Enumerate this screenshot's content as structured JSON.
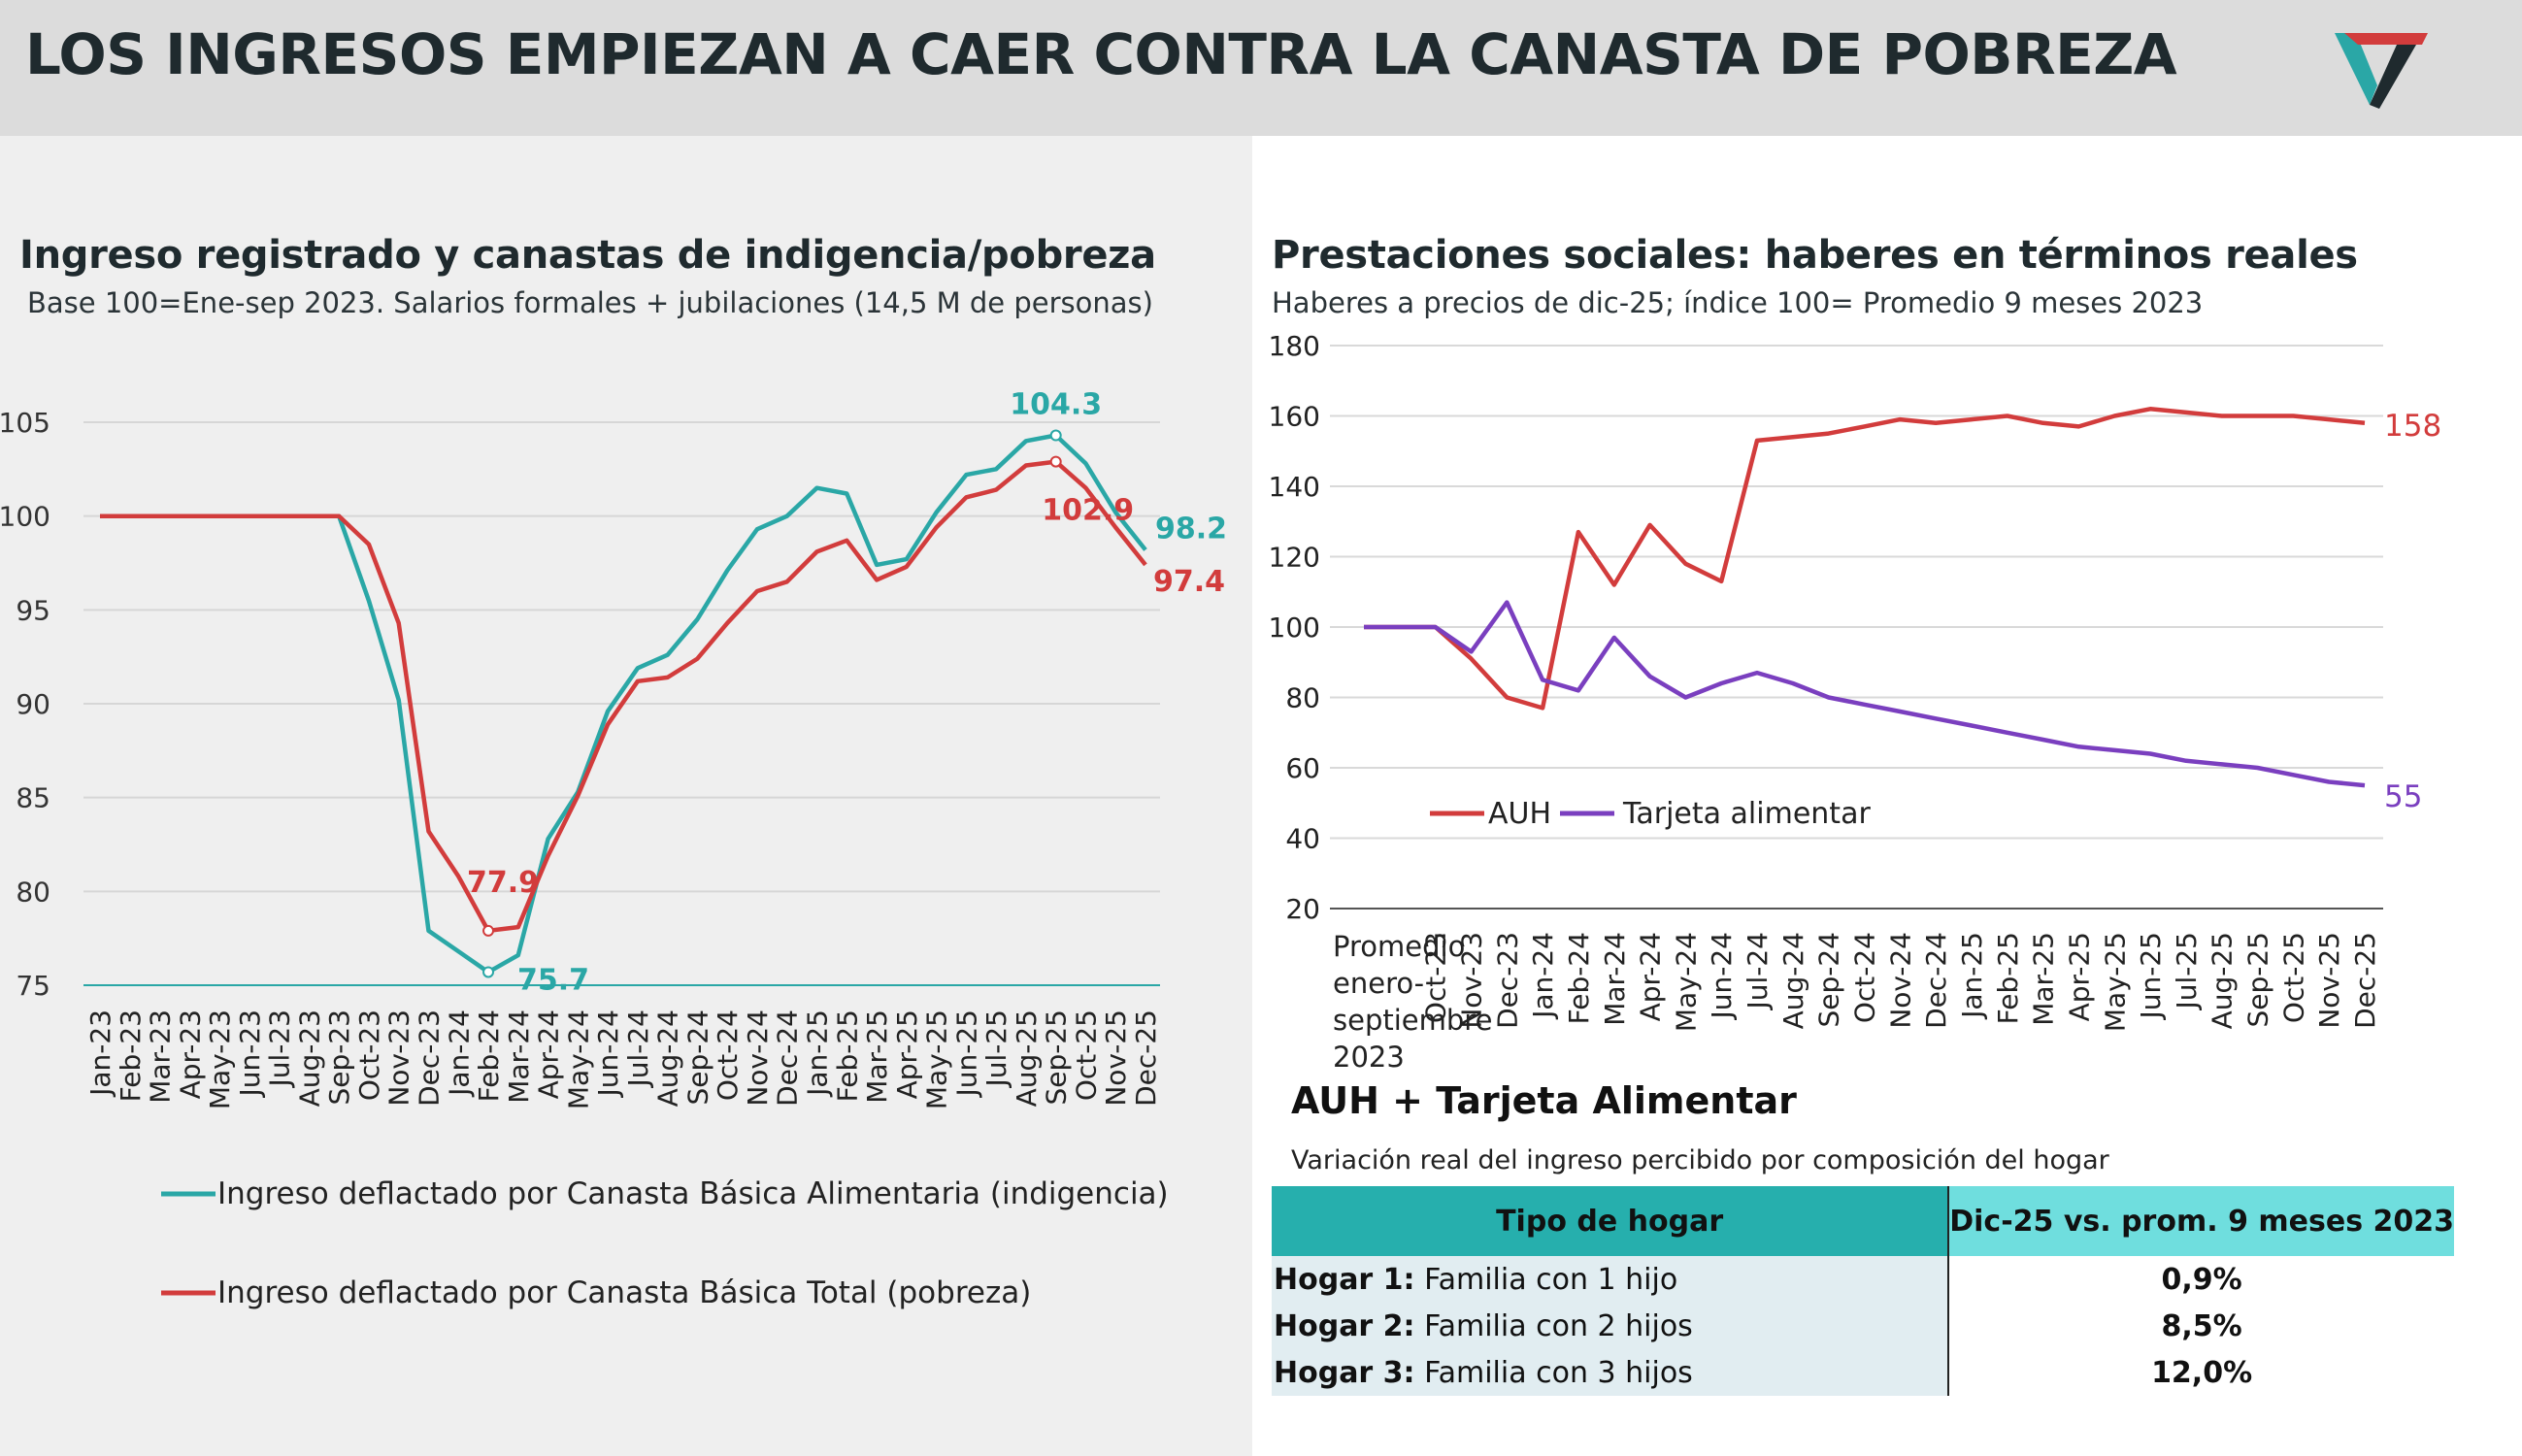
{
  "header": {
    "title": "LOS INGRESOS EMPIEZAN A CAER CONTRA LA CANASTA DE POBREZA",
    "logo": "brand-v-logo",
    "colors": {
      "teal": "#2aa7a6",
      "red": "#d23c3c",
      "dark": "#1f2a2e"
    }
  },
  "left_chart": {
    "title": "Ingreso registrado y canastas de indigencia/pobreza",
    "subtitle": "Base 100=Ene-sep 2023. Salarios formales + jubilaciones (14,5 M de personas)",
    "chart_data": {
      "type": "line",
      "x": [
        "Jan-23",
        "Feb-23",
        "Mar-23",
        "Apr-23",
        "May-23",
        "Jun-23",
        "Jul-23",
        "Aug-23",
        "Sep-23",
        "Oct-23",
        "Nov-23",
        "Dec-23",
        "Jan-24",
        "Feb-24",
        "Mar-24",
        "Apr-24",
        "May-24",
        "Jun-24",
        "Jul-24",
        "Aug-24",
        "Sep-24",
        "Oct-24",
        "Nov-24",
        "Dec-24",
        "Jan-25",
        "Feb-25",
        "Mar-25",
        "Apr-25",
        "May-25",
        "Jun-25",
        "Jul-25",
        "Aug-25",
        "Sep-25",
        "Oct-25",
        "Nov-25",
        "Dec-25"
      ],
      "ylim": [
        75,
        107
      ],
      "yticks": [
        "75",
        "80",
        "85",
        "90",
        "95",
        "100",
        "105"
      ],
      "series": [
        {
          "name": "Ingreso deflactado por Canasta Básica Alimentaria (indigencia)",
          "color": "#2aa7a6",
          "values": [
            100,
            100,
            100,
            100,
            100,
            100,
            100,
            100,
            100,
            95.5,
            90.2,
            77.9,
            76.8,
            75.7,
            76.6,
            82.8,
            85.3,
            89.6,
            91.9,
            92.6,
            94.5,
            97.1,
            99.3,
            100,
            101.5,
            101.2,
            97.4,
            97.7,
            100.2,
            102.2,
            102.5,
            104,
            104.3,
            102.8,
            100.2,
            98.2
          ]
        },
        {
          "name": "Ingreso deflactado por Canasta Básica Total (pobreza)",
          "color": "#d23c3c",
          "values": [
            100,
            100,
            100,
            100,
            100,
            100,
            100,
            100,
            100,
            98.5,
            94.3,
            83.2,
            80.8,
            77.9,
            78.1,
            81.9,
            85.1,
            88.9,
            91.2,
            91.4,
            92.4,
            94.3,
            96,
            96.5,
            98.1,
            98.7,
            96.6,
            97.3,
            99.4,
            101,
            101.4,
            102.7,
            102.9,
            101.5,
            99.4,
            97.4
          ]
        }
      ],
      "annotations": {
        "teal_max": "104.3",
        "teal_min": "75.7",
        "teal_end": "98.2",
        "red_max": "102.9",
        "red_min": "77.9",
        "red_end": "97.4"
      }
    }
  },
  "right_chart": {
    "title": "Prestaciones sociales: haberes en términos reales",
    "subtitle": "Haberes a precios de dic-25; índice 100= Promedio 9 meses 2023",
    "chart_data": {
      "type": "line",
      "x": [
        "Promedio enero-septiembre 2023",
        "Oct-23",
        "Nov-23",
        "Dec-23",
        "Jan-24",
        "Feb-24",
        "Mar-24",
        "Apr-24",
        "May-24",
        "Jun-24",
        "Jul-24",
        "Aug-24",
        "Sep-24",
        "Oct-24",
        "Nov-24",
        "Dec-24",
        "Jan-25",
        "Feb-25",
        "Mar-25",
        "Apr-25",
        "May-25",
        "Jun-25",
        "Jul-25",
        "Aug-25",
        "Sep-25",
        "Oct-25",
        "Nov-25",
        "Dec-25"
      ],
      "first_label_lines": [
        "Promedio",
        "enero-",
        "septiembre",
        "2023"
      ],
      "ylim": [
        20,
        180
      ],
      "yticks": [
        "20",
        "40",
        "60",
        "80",
        "100",
        "120",
        "140",
        "160",
        "180"
      ],
      "series": [
        {
          "name": "AUH",
          "color": "#d23c3c",
          "values": [
            100,
            100,
            91,
            80,
            77,
            127,
            112,
            129,
            118,
            113,
            153,
            154,
            155,
            157,
            159,
            158,
            159,
            160,
            158,
            157,
            160,
            162,
            161,
            160,
            160,
            160,
            159,
            158
          ]
        },
        {
          "name": "Tarjeta alimentar",
          "color": "#7a3fbf",
          "values": [
            100,
            100,
            93,
            107,
            85,
            82,
            97,
            86,
            80,
            84,
            87,
            84,
            80,
            78,
            76,
            74,
            72,
            70,
            68,
            66,
            65,
            64,
            62,
            61,
            60,
            58,
            56,
            55
          ]
        }
      ],
      "end_labels": {
        "auh": "158",
        "tarjeta": "55"
      }
    }
  },
  "table": {
    "title": "AUH + Tarjeta Alimentar",
    "subtitle": "Variación real del ingreso percibido por composición del hogar",
    "headers": [
      "Tipo de hogar",
      "Dic-25 vs. prom. 9 meses 2023"
    ],
    "rows": [
      {
        "label": "Hogar 1:",
        "desc": " Familia con 1 hijo",
        "value": "0,9%"
      },
      {
        "label": "Hogar 2:",
        "desc": " Familia con 2 hijos",
        "value": "8,5%"
      },
      {
        "label": "Hogar 3:",
        "desc": " Familia con 3 hijos",
        "value": "12,0%"
      }
    ]
  }
}
